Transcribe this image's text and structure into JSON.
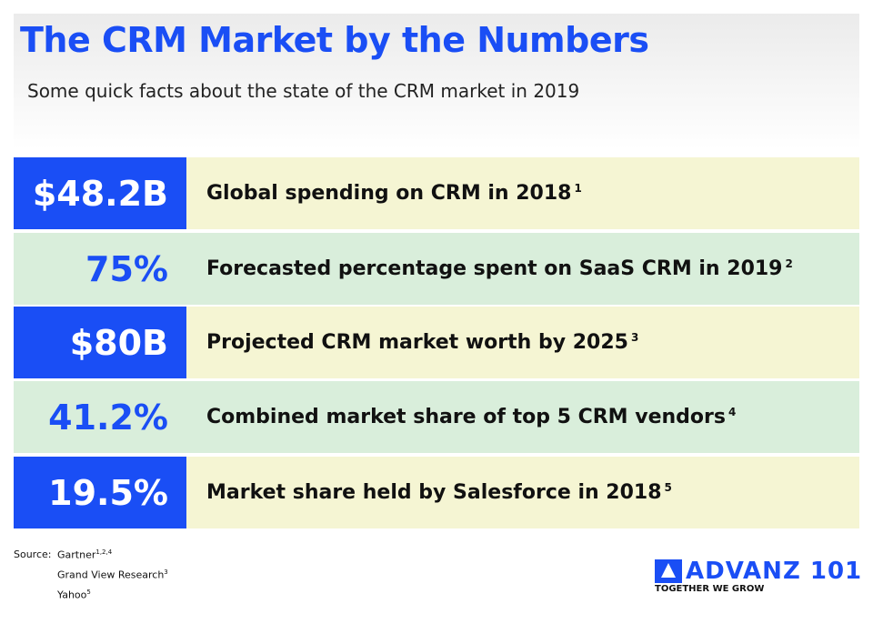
{
  "header": {
    "title": "The CRM Market by the Numbers",
    "subtitle": "Some quick facts about the state of the CRM market in 2019"
  },
  "rows": [
    {
      "value": "$48.2B",
      "text": "Global spending on CRM in 2018",
      "ref": "1"
    },
    {
      "value": "75%",
      "text": "Forecasted percentage spent on SaaS CRM in 2019",
      "ref": "2"
    },
    {
      "value": "$80B",
      "text": "Projected CRM market worth by 2025",
      "ref": "3"
    },
    {
      "value": "41.2%",
      "text": "Combined market share of top 5 CRM vendors",
      "ref": "4"
    },
    {
      "value": "19.5%",
      "text": "Market share held by Salesforce in 2018",
      "ref": "5"
    }
  ],
  "sources": {
    "label": "Source:",
    "items": [
      {
        "name": "Gartner",
        "ref": "1,2,4"
      },
      {
        "name": "Grand View Research",
        "ref": "3"
      },
      {
        "name": "Yahoo",
        "ref": "5"
      }
    ]
  },
  "logo": {
    "name": "ADVANZ 101",
    "tagline": "TOGETHER WE GROW"
  },
  "colors": {
    "brand": "#1a4ef5",
    "row_yellow": "#f5f5d3",
    "row_green": "#d9eedb"
  }
}
